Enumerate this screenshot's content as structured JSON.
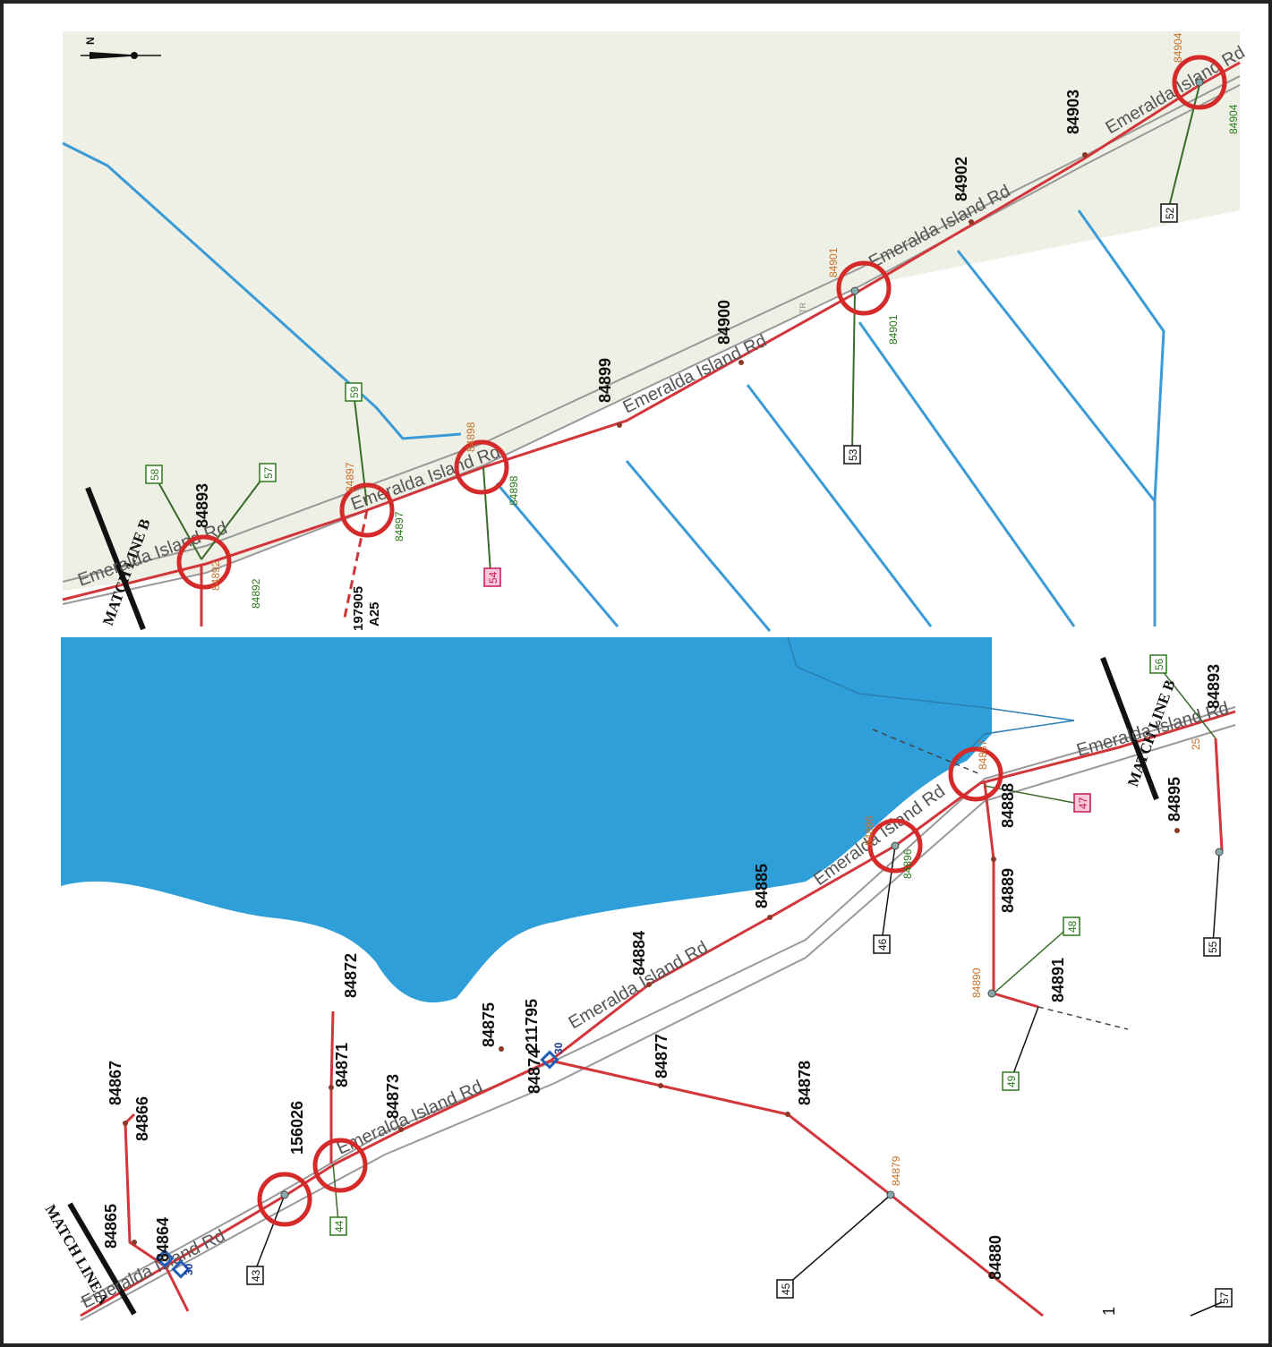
{
  "match_lines": {
    "a": "MATCH LINE A",
    "b": "MATCH LINE B"
  },
  "road_name": "Emeralda Island Rd",
  "north_label": "N",
  "page_number": "1",
  "upper_panel": {
    "pole_labels": [
      "84893",
      "84899",
      "84900",
      "84902",
      "84903"
    ],
    "sub_labels": [
      "84892",
      "84897",
      "84898",
      "84901",
      "84904"
    ],
    "green_labels": [
      "84892",
      "84897",
      "84898",
      "84901",
      "84904"
    ],
    "boxed_tags": [
      "58",
      "57",
      "59",
      "54",
      "53",
      "52"
    ],
    "misc": [
      "197905",
      "A25",
      "TR"
    ]
  },
  "lower_panel": {
    "pole_labels": [
      "84865",
      "84864",
      "84867",
      "84866",
      "84872",
      "84871",
      "84873",
      "156026",
      "84875",
      "211795",
      "84874",
      "84877",
      "84878",
      "84879",
      "84880",
      "84884",
      "84885",
      "84886",
      "84887",
      "84888",
      "84889",
      "84890",
      "84891",
      "84893",
      "84895",
      "84896"
    ],
    "boxed_tags": [
      "43",
      "44",
      "45",
      "46",
      "47",
      "48",
      "49",
      "55",
      "56",
      "57"
    ],
    "misc": [
      "30",
      "30",
      "25"
    ]
  },
  "colors": {
    "primary_line": "#d2353a",
    "secondary_line": "#3a6b2a",
    "water": "#2e9fd8",
    "stream": "#3b9bd6",
    "circle": "#d42a2a",
    "land": "#eef0e6"
  }
}
